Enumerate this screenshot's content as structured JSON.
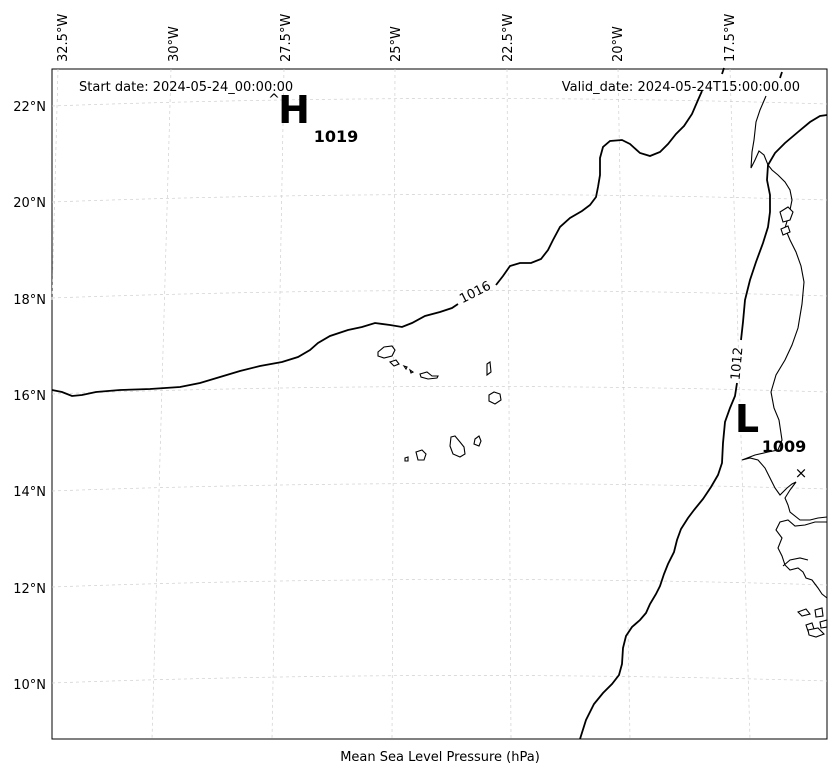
{
  "header": {
    "start_date": "Start date: 2024-05-24_00:00:00",
    "valid_date": "Valid_date: 2024-05-24T15:00:00.00"
  },
  "caption": "Mean Sea Level Pressure (hPa)",
  "longitude_labels": [
    "32.5°W",
    "30°W",
    "27.5°W",
    "25°W",
    "22.5°W",
    "20°W",
    "17.5°W"
  ],
  "latitude_labels": [
    "22°N",
    "20°N",
    "18°N",
    "16°N",
    "14°N",
    "12°N",
    "10°N"
  ],
  "isobar_labels": [
    "1016",
    "1012"
  ],
  "pressure_centers": [
    {
      "letter": "H",
      "value": "1019"
    },
    {
      "letter": "L",
      "value": "1009"
    }
  ],
  "marker_symbol": "×",
  "colors": {
    "background": "#ffffff",
    "lines": "#000000",
    "grid": "#cfcfcf"
  }
}
